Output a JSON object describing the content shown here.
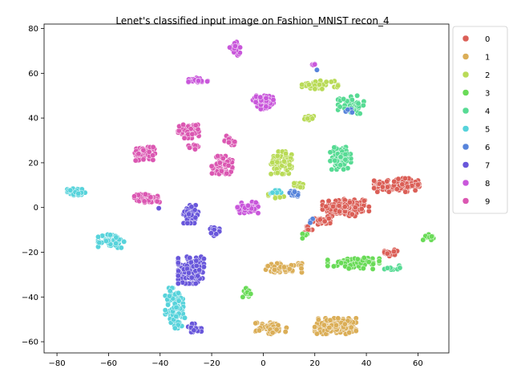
{
  "chart_data": {
    "type": "scatter",
    "title": "Lenet's classified input image on Fashion_MNIST recon_4",
    "xlabel": "",
    "ylabel": "",
    "xlim": [
      -85,
      72
    ],
    "ylim": [
      -65,
      82
    ],
    "xticks": [
      -80,
      -60,
      -40,
      -20,
      0,
      20,
      40,
      60
    ],
    "yticks": [
      -60,
      -40,
      -20,
      0,
      20,
      40,
      60,
      80
    ],
    "grid": false,
    "legend_placement": "outside-upper-right",
    "series": [
      {
        "name": "0",
        "color": "#db5f57",
        "clusters": [
          [
            32,
            0,
            9,
            4,
            140
          ],
          [
            52,
            10,
            9,
            3,
            110
          ],
          [
            22,
            -6,
            4,
            2,
            25
          ],
          [
            50,
            -20,
            3,
            2,
            20
          ],
          [
            17,
            -10,
            2,
            1.5,
            8
          ]
        ]
      },
      {
        "name": "1",
        "color": "#dbae57",
        "clusters": [
          [
            28,
            -53,
            8,
            3.5,
            130
          ],
          [
            8,
            -27,
            7,
            2,
            50
          ],
          [
            3,
            -54,
            6,
            2.5,
            50
          ]
        ]
      },
      {
        "name": "2",
        "color": "#b9db57",
        "clusters": [
          [
            7,
            20,
            4,
            5,
            60
          ],
          [
            22,
            55,
            7,
            2,
            35
          ],
          [
            18,
            40,
            2,
            1,
            10
          ],
          [
            5,
            5,
            3,
            1,
            10
          ],
          [
            14,
            10,
            2,
            1,
            8
          ]
        ]
      },
      {
        "name": "3",
        "color": "#69db57",
        "clusters": [
          [
            35,
            -25,
            10,
            2.5,
            70
          ],
          [
            -6,
            -38,
            2,
            2,
            20
          ],
          [
            64,
            -13,
            2,
            1.5,
            10
          ],
          [
            16,
            -12,
            1.5,
            2,
            6
          ]
        ]
      },
      {
        "name": "4",
        "color": "#57db94",
        "clusters": [
          [
            30,
            22,
            4,
            5,
            75
          ],
          [
            34,
            46,
            5,
            4,
            55
          ],
          [
            50,
            -27,
            3,
            1,
            10
          ]
        ]
      },
      {
        "name": "5",
        "color": "#57d3db",
        "clusters": [
          [
            -72,
            7,
            4,
            1.5,
            40
          ],
          [
            -59,
            -15,
            5,
            3,
            55
          ],
          [
            -34,
            -45,
            4,
            9,
            80
          ],
          [
            5,
            7,
            3,
            1,
            8
          ]
        ]
      },
      {
        "name": "6",
        "color": "#5784db",
        "clusters": [
          [
            12,
            6,
            2,
            1.5,
            15
          ],
          [
            34,
            43,
            2,
            1,
            5
          ],
          [
            21,
            62,
            0.5,
            0.5,
            1
          ],
          [
            19,
            -6,
            1,
            1,
            3
          ]
        ]
      },
      {
        "name": "7",
        "color": "#6957db",
        "clusters": [
          [
            -28,
            -28,
            5,
            6,
            160
          ],
          [
            -28,
            -3,
            3,
            4,
            45
          ],
          [
            -19,
            -11,
            2,
            2,
            20
          ],
          [
            -27,
            -54,
            3,
            2,
            22
          ],
          [
            -40,
            0,
            0.5,
            0.5,
            1
          ]
        ]
      },
      {
        "name": "8",
        "color": "#c957db",
        "clusters": [
          [
            0,
            47,
            4,
            3,
            65
          ],
          [
            -6,
            0,
            4,
            2.5,
            55
          ],
          [
            -11,
            71,
            2,
            3,
            28
          ],
          [
            -25,
            57,
            4,
            1,
            22
          ],
          [
            19,
            64,
            1,
            1,
            4
          ]
        ]
      },
      {
        "name": "9",
        "color": "#db57b2",
        "clusters": [
          [
            -46,
            24,
            4,
            3,
            75
          ],
          [
            -29,
            34,
            4,
            3,
            55
          ],
          [
            -16,
            19,
            4,
            4,
            60
          ],
          [
            -13,
            30,
            2,
            2,
            20
          ],
          [
            -45,
            4,
            5,
            2,
            45
          ],
          [
            -27,
            27,
            2,
            1,
            8
          ]
        ]
      }
    ]
  }
}
